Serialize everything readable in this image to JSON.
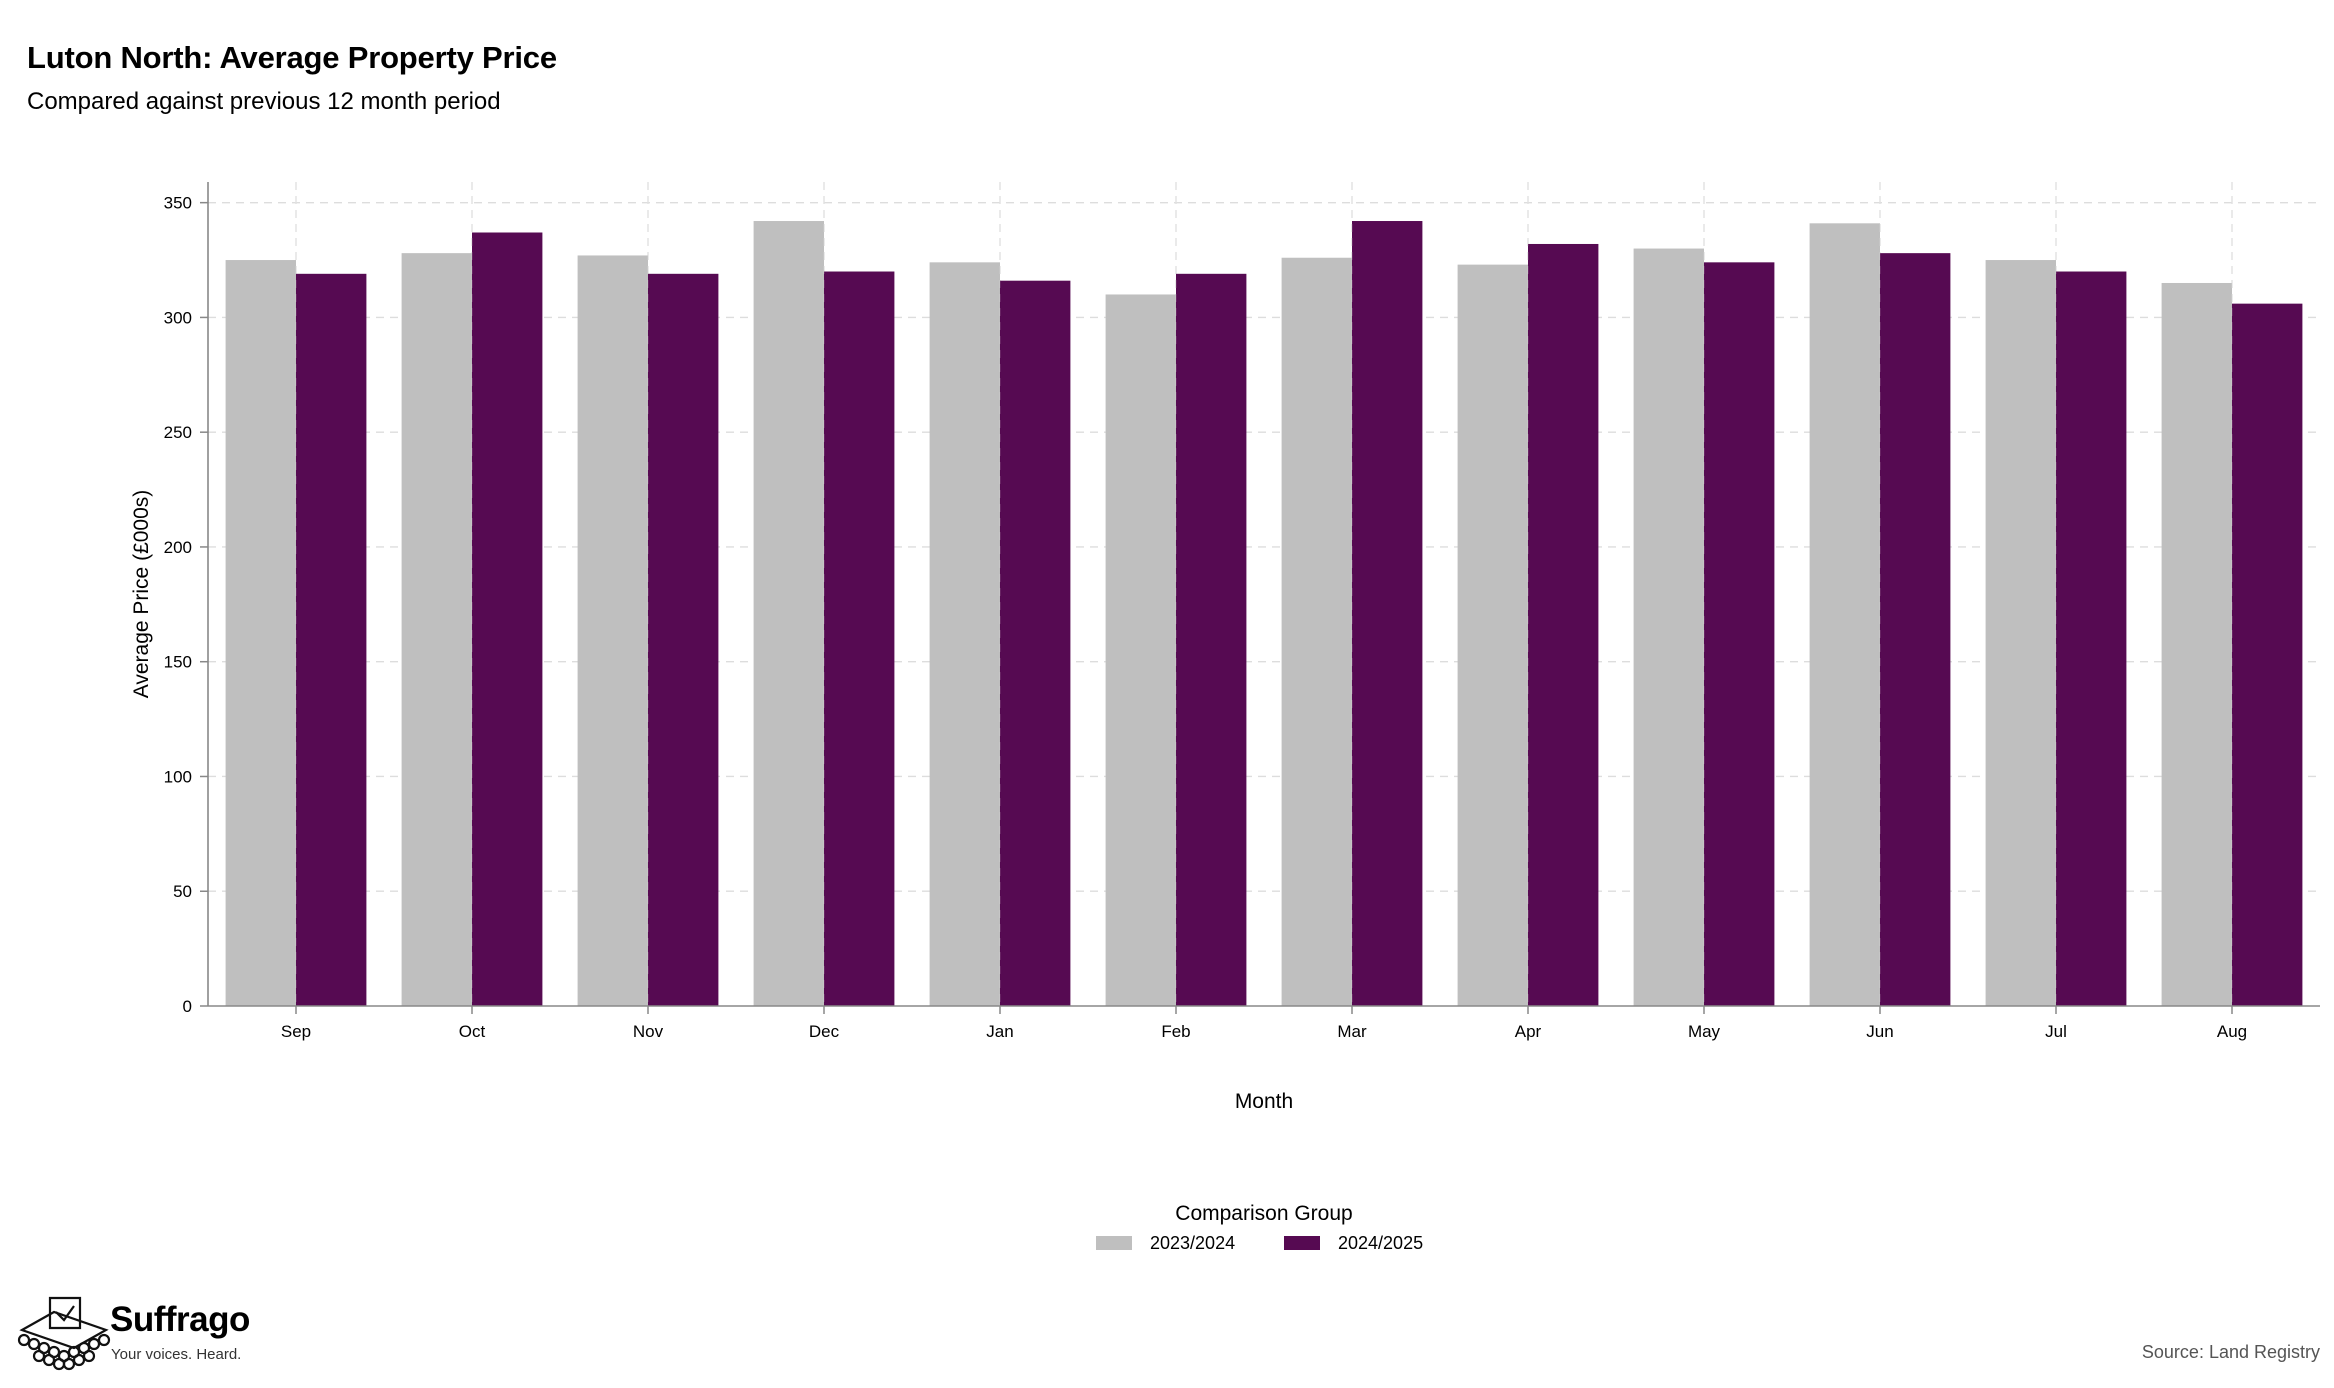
{
  "header": {
    "title": "Luton North: Average Property Price",
    "subtitle": "Compared against previous 12 month period"
  },
  "footer": {
    "brand_name": "Suffrago",
    "brand_tagline": "Your voices. Heard.",
    "source": "Source: Land Registry"
  },
  "colors": {
    "series_2023_2024": "#bfbfbf",
    "series_2024_2025": "#560a52",
    "grid": "#dddddd",
    "axis": "#888888"
  },
  "icons": {
    "brand_logo": "ballot-box-icon"
  },
  "chart_data": {
    "type": "bar",
    "title": "Luton North: Average Property Price",
    "subtitle": "Compared against previous 12 month period",
    "xlabel": "Month",
    "ylabel": "Average Price (£000s)",
    "categories": [
      "Sep",
      "Oct",
      "Nov",
      "Dec",
      "Jan",
      "Feb",
      "Mar",
      "Apr",
      "May",
      "Jun",
      "Jul",
      "Aug"
    ],
    "series": [
      {
        "name": "2023/2024",
        "values": [
          325,
          328,
          327,
          342,
          324,
          310,
          326,
          323,
          330,
          341,
          325,
          315
        ]
      },
      {
        "name": "2024/2025",
        "values": [
          319,
          337,
          319,
          320,
          316,
          319,
          342,
          332,
          324,
          328,
          320,
          306
        ]
      }
    ],
    "yticks": [
      0,
      50,
      100,
      150,
      200,
      250,
      300,
      350
    ],
    "ylim": [
      0,
      359
    ],
    "grid": true,
    "legend": {
      "title": "Comparison Group",
      "position": "bottom-center"
    }
  }
}
